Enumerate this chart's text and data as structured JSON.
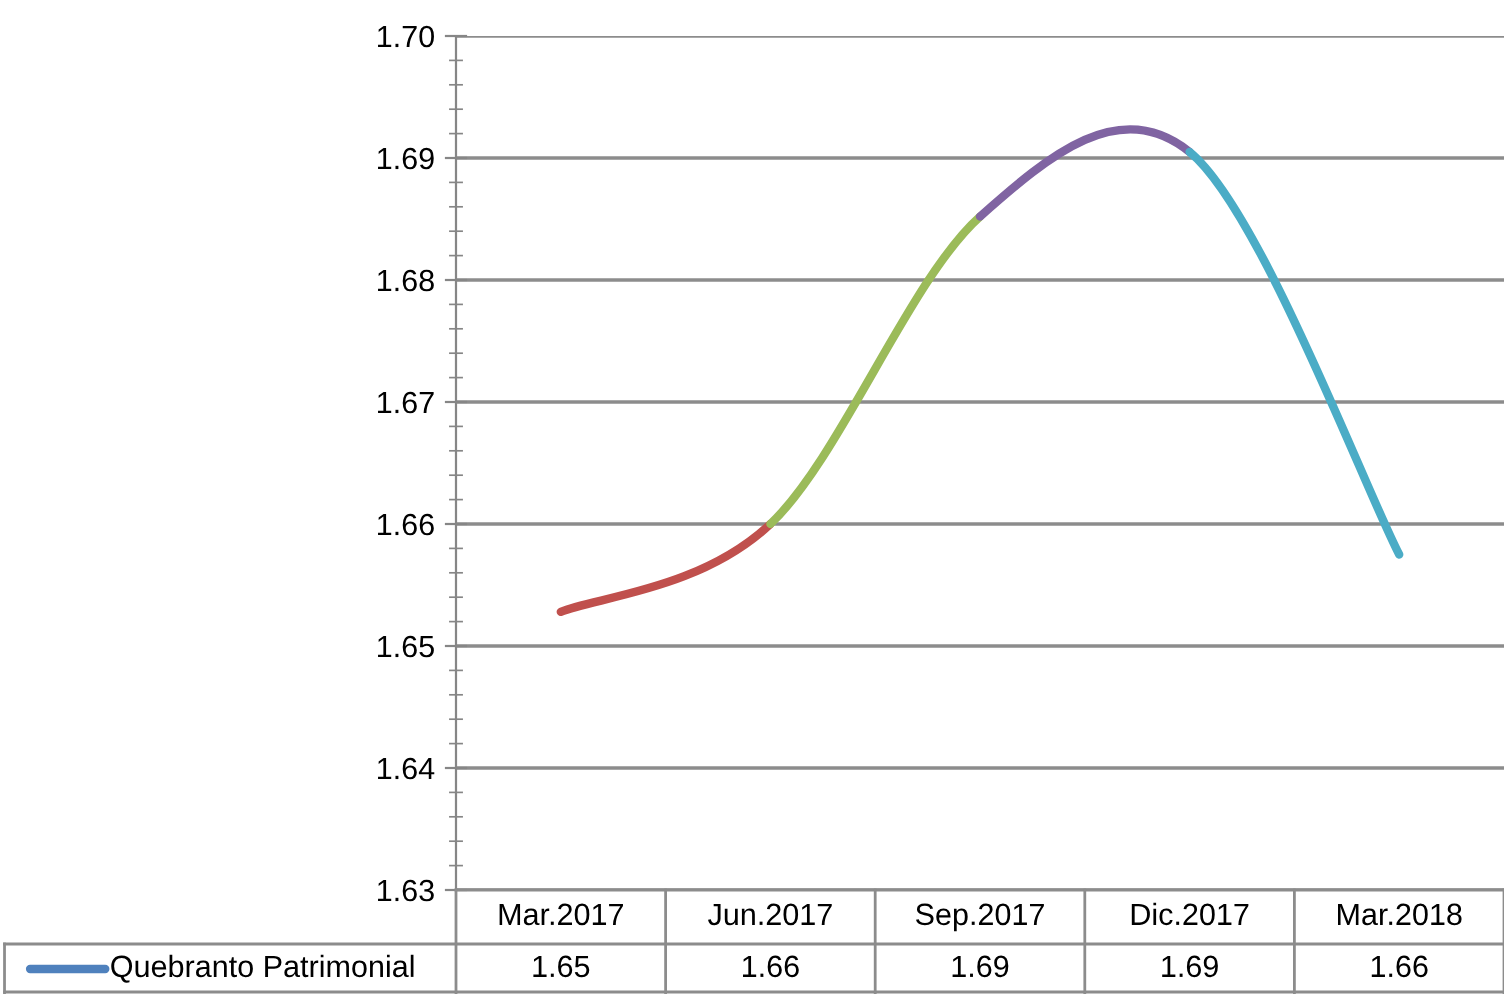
{
  "chart_data": {
    "type": "line",
    "categories": [
      "Mar.2017",
      "Jun.2017",
      "Sep.2017",
      "Dic.2017",
      "Mar.2018"
    ],
    "series": [
      {
        "name": "Quebranto Patrimonial",
        "color": "#4f81bd",
        "values": [
          null,
          null,
          null,
          null,
          null
        ],
        "value_labels": [
          "1.65",
          "1.66",
          "1.69",
          "1.69",
          "1.66"
        ]
      },
      {
        "color": "#c0504d",
        "values": [
          1.6528,
          1.66,
          null,
          null,
          null
        ]
      },
      {
        "color": "#9bbb59",
        "values": [
          null,
          1.66,
          1.6852,
          null,
          null
        ]
      },
      {
        "color": "#8064a2",
        "values": [
          null,
          null,
          1.6852,
          1.6905,
          null
        ]
      },
      {
        "color": "#4bacc6",
        "values": [
          null,
          null,
          null,
          1.6905,
          1.6575
        ]
      }
    ],
    "ylim": [
      1.63,
      1.7
    ],
    "yticks": [
      1.63,
      1.64,
      1.65,
      1.66,
      1.67,
      1.68,
      1.69,
      {
        "value": 1.7,
        "label": "1.70"
      }
    ],
    "grid": "y",
    "legend": "bottom",
    "marker": "none",
    "line_style": "solid"
  }
}
